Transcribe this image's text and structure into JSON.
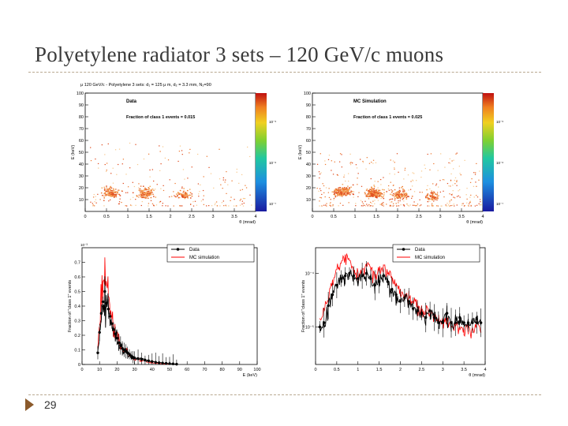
{
  "slide": {
    "title": "Polyetylene radiator 3 sets – 120 GeV/c muons",
    "page_number": "29"
  },
  "chart_data": [
    {
      "id": "data-scatter",
      "type": "heatmap",
      "header": "μ 120 GeV/c - Polyetylene 3 sets: d₁ = 125 μ m, d₂ = 3.3 mm, N₂=90",
      "label": "Data",
      "fraction_text": "Fraction of class 1 events = 0.015",
      "xlabel": "θ (mrad)",
      "ylabel": "E (keV)",
      "xlim": [
        0,
        4
      ],
      "ylim": [
        0,
        100
      ],
      "x_ticks": [
        "0",
        "0.5",
        "1",
        "1.5",
        "2",
        "2.5",
        "3",
        "3.5",
        "4"
      ],
      "y_ticks": [
        "10",
        "20",
        "30",
        "40",
        "50",
        "60",
        "70",
        "80",
        "90",
        "100"
      ],
      "colorbar_labels": [
        "10⁻⁵",
        "10⁻⁶",
        "10⁻⁷"
      ],
      "clusters": [
        {
          "x": 0.6,
          "y": 14,
          "weight": 0.8
        },
        {
          "x": 1.4,
          "y": 13,
          "weight": 0.8
        },
        {
          "x": 2.3,
          "y": 12,
          "weight": 0.5
        }
      ],
      "x_extent": [
        0.1,
        3.9
      ],
      "y_extent": [
        5,
        60
      ],
      "point_count": 520
    },
    {
      "id": "mc-scatter",
      "type": "heatmap",
      "label": "MC Simulation",
      "fraction_text": "Fraction of class 1 events = 0.025",
      "xlabel": "θ (mrad)",
      "ylabel": "E (keV)",
      "xlim": [
        0,
        4
      ],
      "ylim": [
        0,
        100
      ],
      "x_ticks": [
        "0",
        "0.5",
        "1",
        "1.5",
        "2",
        "2.5",
        "3",
        "3.5",
        "4"
      ],
      "y_ticks": [
        "10",
        "20",
        "30",
        "40",
        "50",
        "60",
        "70",
        "80",
        "90",
        "100"
      ],
      "colorbar_labels": [
        "10⁻⁵",
        "10⁻⁶",
        "10⁻⁷"
      ],
      "clusters": [
        {
          "x": 0.7,
          "y": 15,
          "weight": 1.0
        },
        {
          "x": 1.45,
          "y": 13,
          "weight": 0.9
        },
        {
          "x": 2.05,
          "y": 12,
          "weight": 0.6
        },
        {
          "x": 2.8,
          "y": 11,
          "weight": 0.35
        }
      ],
      "x_extent": [
        0.1,
        3.95
      ],
      "y_extent": [
        5,
        50
      ],
      "point_count": 900
    },
    {
      "id": "energy-spectrum",
      "type": "line",
      "exponent_label": "10⁻³",
      "xlabel": "E (keV)",
      "ylabel": "Fraction of \"class 1\" events",
      "xlim": [
        0,
        100
      ],
      "ylim": [
        0,
        0.0008
      ],
      "x_ticks": [
        "0",
        "10",
        "20",
        "30",
        "40",
        "50",
        "60",
        "70",
        "80",
        "90",
        "100"
      ],
      "y_ticks": [
        "0",
        "0.1",
        "0.2",
        "0.3",
        "0.4",
        "0.5",
        "0.6",
        "0.7"
      ],
      "y_tick_values": [
        0,
        0.0001,
        0.0002,
        0.0003,
        0.0004,
        0.0005,
        0.0006,
        0.0007
      ],
      "legend": [
        "Data",
        "MC simulation"
      ],
      "series": [
        {
          "name": "Data",
          "color": "#000000",
          "x": [
            9,
            10,
            11,
            12,
            13,
            14,
            15,
            16,
            17,
            18,
            19,
            20,
            21,
            22,
            23,
            24,
            25,
            26,
            27,
            28,
            29,
            30,
            32,
            34,
            36,
            38,
            40,
            42,
            44,
            46,
            48,
            50,
            52,
            54
          ],
          "y": [
            8e-05,
            0.00022,
            0.00035,
            0.00043,
            0.0005,
            0.00042,
            0.00038,
            0.00033,
            0.00028,
            0.00024,
            0.00021,
            0.00018,
            0.00015,
            0.00013,
            0.00011,
            0.0001,
            9e-05,
            8e-05,
            7e-05,
            6e-05,
            5e-05,
            4.5e-05,
            4e-05,
            3.5e-05,
            3e-05,
            2.5e-05,
            2e-05,
            1.5e-05,
            1.2e-05,
            1e-05,
            8e-06,
            6e-06,
            4e-06,
            2e-06
          ]
        },
        {
          "name": "MC simulation",
          "color": "#ff0000",
          "x": [
            9,
            10,
            11,
            12,
            13,
            14,
            15,
            16,
            17,
            18,
            19,
            20,
            21,
            22,
            23,
            24,
            25,
            26,
            27,
            28,
            29,
            30,
            32,
            34,
            36,
            38,
            40,
            42,
            44,
            46,
            48,
            50
          ],
          "y": [
            0.00012,
            0.0003,
            0.00048,
            0.00058,
            0.00065,
            0.00052,
            0.00047,
            0.00039,
            0.00033,
            0.00028,
            0.00024,
            0.0002,
            0.00017,
            0.00014,
            0.00012,
            0.0001,
            9e-05,
            8e-05,
            6.5e-05,
            5.5e-05,
            4.5e-05,
            4e-05,
            3.3e-05,
            2.6e-05,
            2e-05,
            1.5e-05,
            1e-05,
            8e-06,
            6e-06,
            4e-06,
            3e-06,
            2e-06
          ]
        }
      ]
    },
    {
      "id": "angular-spectrum",
      "type": "line",
      "y_scale": "log",
      "xlabel": "θ (mrad)",
      "ylabel": "Fraction of \"class 1\" events",
      "xlim": [
        0,
        4
      ],
      "ylim": [
        2e-06,
        0.0003
      ],
      "x_ticks": [
        "0",
        "0.5",
        "1",
        "1.5",
        "2",
        "2.5",
        "3",
        "3.5",
        "4"
      ],
      "y_ticks": [
        "10⁻⁵",
        "10⁻⁴"
      ],
      "y_tick_values": [
        1e-05,
        0.0001
      ],
      "legend": [
        "Data",
        "MC simulation"
      ],
      "series": [
        {
          "name": "Data",
          "color": "#000000",
          "x": [
            0.1,
            0.2,
            0.3,
            0.4,
            0.5,
            0.6,
            0.7,
            0.8,
            0.9,
            1.0,
            1.1,
            1.2,
            1.3,
            1.4,
            1.5,
            1.6,
            1.7,
            1.8,
            1.9,
            2.0,
            2.1,
            2.2,
            2.3,
            2.4,
            2.5,
            2.6,
            2.7,
            2.8,
            2.9,
            3.0,
            3.1,
            3.2,
            3.3,
            3.4,
            3.5,
            3.6,
            3.7,
            3.8,
            3.9
          ],
          "y": [
            1e-05,
            1.2e-05,
            2.5e-05,
            4e-05,
            6e-05,
            8e-05,
            9e-05,
            0.0001,
            9e-05,
            8e-05,
            9e-05,
            0.0001,
            8e-05,
            6e-05,
            7e-05,
            9e-05,
            7e-05,
            5e-05,
            4e-05,
            3e-05,
            3.5e-05,
            3e-05,
            2.2e-05,
            2e-05,
            1.8e-05,
            1.5e-05,
            2e-05,
            1.5e-05,
            1.2e-05,
            1.2e-05,
            1.8e-05,
            1.2e-05,
            1.2e-05,
            1.5e-05,
            1.2e-05,
            1.2e-05,
            1.2e-05,
            1.2e-05,
            1.2e-05
          ]
        },
        {
          "name": "MC simulation",
          "color": "#ff0000",
          "x": [
            0.1,
            0.2,
            0.3,
            0.4,
            0.5,
            0.6,
            0.7,
            0.8,
            0.9,
            1.0,
            1.1,
            1.2,
            1.3,
            1.4,
            1.5,
            1.6,
            1.7,
            1.8,
            1.9,
            2.0,
            2.1,
            2.2,
            2.3,
            2.4,
            2.5,
            2.6,
            2.7,
            2.8,
            2.9,
            3.0,
            3.1,
            3.2,
            3.3,
            3.4,
            3.5,
            3.6,
            3.7,
            3.8,
            3.9
          ],
          "y": [
            1.2e-05,
            2e-05,
            4e-05,
            7e-05,
            0.00011,
            0.00016,
            0.0002,
            0.00016,
            0.00011,
            9e-05,
            0.00012,
            0.00015,
            0.00012,
            8e-05,
            0.00011,
            0.00014,
            0.0001,
            8e-05,
            6e-05,
            5e-05,
            4e-05,
            3.5e-05,
            3e-05,
            2.5e-05,
            2e-05,
            2e-05,
            1.8e-05,
            1.6e-05,
            1.5e-05,
            1.4e-05,
            1.2e-05,
            1e-05,
            1e-05,
            9e-06,
            9e-06,
            1e-05,
            8e-06,
            1e-05,
            9e-06
          ]
        }
      ]
    }
  ]
}
